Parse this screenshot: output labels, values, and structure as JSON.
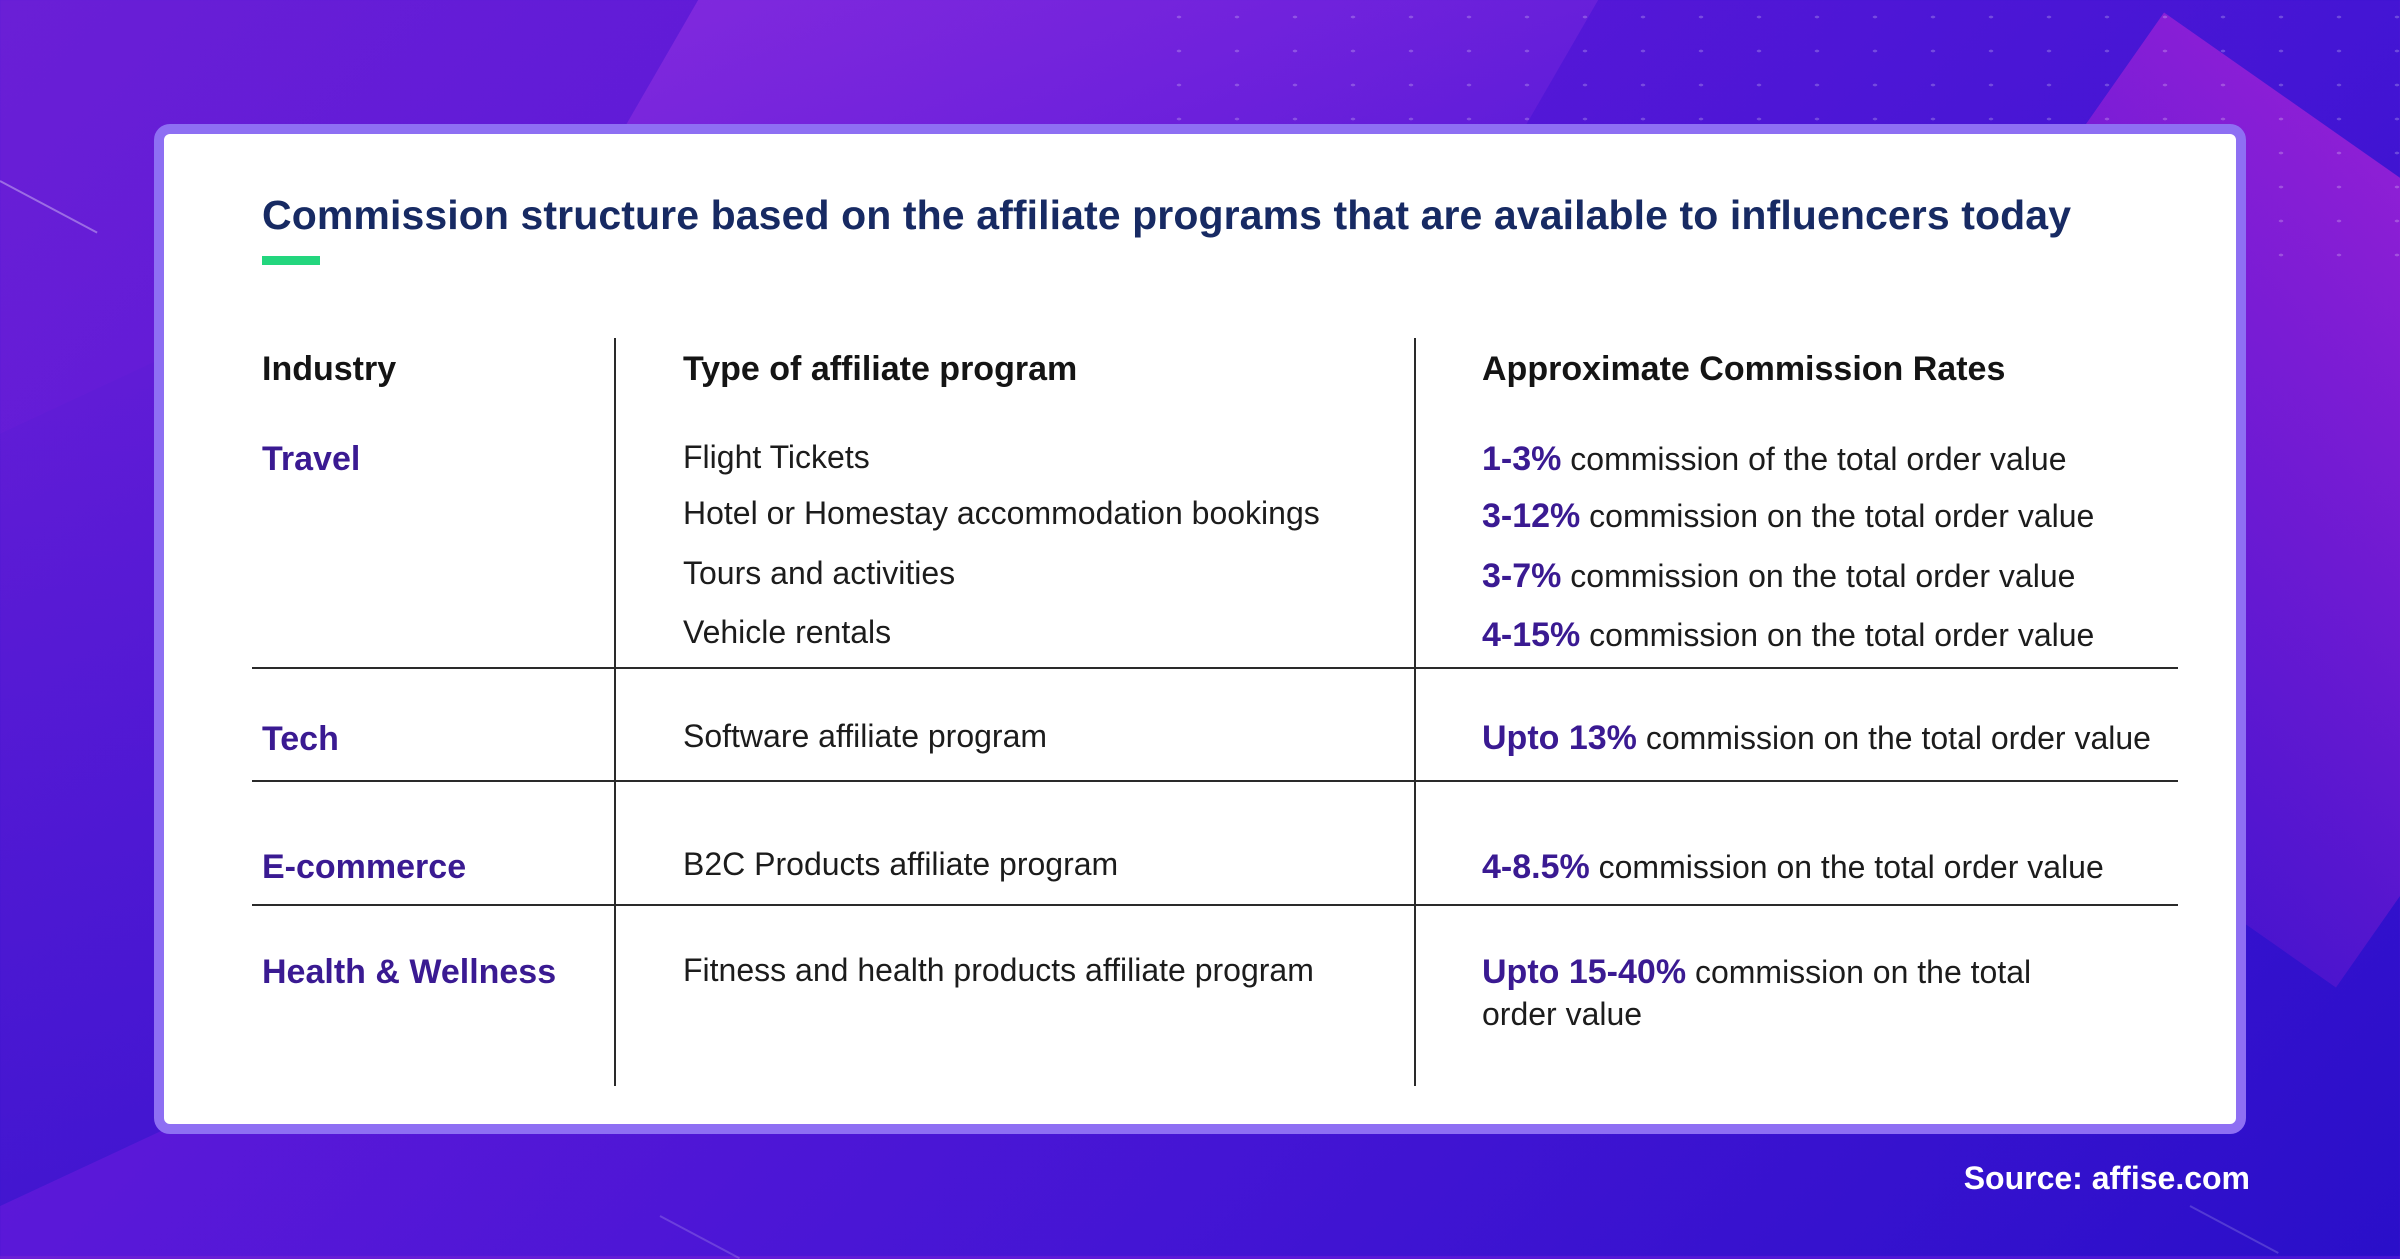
{
  "title": "Commission structure based on the affiliate programs that are available to influencers today",
  "colors": {
    "accent_bar": "#23d67e",
    "title_text": "#172a63",
    "industry_text": "#3a1a92",
    "card_border": "#8e6ff3"
  },
  "table": {
    "headers": {
      "industry": "Industry",
      "program": "Type of affiliate program",
      "rates": "Approximate Commission Rates"
    },
    "rows": [
      {
        "industry": "Travel",
        "programs": [
          "Flight Tickets",
          "Hotel or Homestay accommodation bookings",
          "Tours and activities",
          "Vehicle rentals"
        ],
        "rates": [
          {
            "value": "1-3%",
            "text": " commission of the total order value"
          },
          {
            "value": "3-12%",
            "text": " commission on the total order value"
          },
          {
            "value": "3-7%",
            "text": " commission on the total order value"
          },
          {
            "value": "4-15%",
            "text": " commission on the total order value"
          }
        ]
      },
      {
        "industry": "Tech",
        "programs": [
          "Software affiliate program"
        ],
        "rates": [
          {
            "value": "Upto 13%",
            "text": " commission on the total order value"
          }
        ]
      },
      {
        "industry": "E-commerce",
        "programs": [
          "B2C Products affiliate program"
        ],
        "rates": [
          {
            "value": "4-8.5%",
            "text": " commission on the total order value"
          }
        ]
      },
      {
        "industry": "Health & Wellness",
        "programs": [
          "Fitness and health products affiliate program"
        ],
        "rates": [
          {
            "value": "Upto 15-40%",
            "text": " commission on the total order value"
          }
        ]
      }
    ]
  },
  "source": "Source: affise.com"
}
